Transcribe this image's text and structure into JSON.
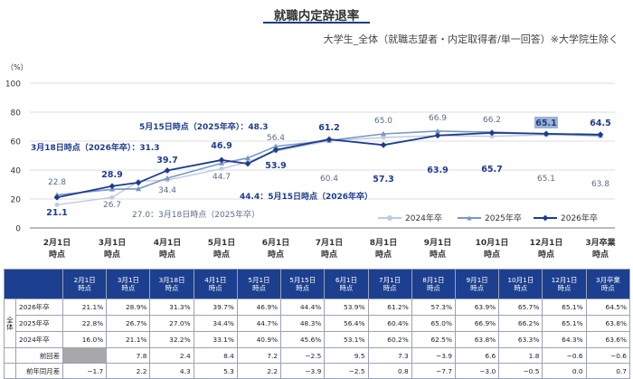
{
  "header": {
    "title": "就職内定辞退率",
    "subtitle": "大学生_全体（就職志望者・内定取得者/単一回答）※大学院生除く"
  },
  "chart_data": {
    "type": "line",
    "y_unit": "（%）",
    "ylim": [
      0,
      100
    ],
    "yticks": [
      "0",
      "20",
      "40",
      "60",
      "80",
      "100"
    ],
    "categories": [
      "2月1日時点",
      "3月1日時点",
      "3月18日時点",
      "4月1日時点",
      "5月1日時点",
      "5月15日時点",
      "6月1日時点",
      "7月1日時点",
      "8月1日時点",
      "9月1日時点",
      "10月1日時点",
      "12月1日時点",
      "3月卒業時点"
    ],
    "x_tick_labels": [
      [
        "2月1日",
        "時点"
      ],
      [
        "3月1日",
        "時点"
      ],
      [
        "4月1日",
        "時点"
      ],
      [
        "5月1日",
        "時点"
      ],
      [
        "6月1日",
        "時点"
      ],
      [
        "7月1日",
        "時点"
      ],
      [
        "8月1日",
        "時点"
      ],
      [
        "9月1日",
        "時点"
      ],
      [
        "10月1日",
        "時点"
      ],
      [
        "12月1日",
        "時点"
      ],
      [
        "3月卒業",
        "時点"
      ]
    ],
    "grid": true,
    "legend_position": "bottom-right",
    "series": [
      {
        "name": "2024年卒",
        "color": "#bccbe0",
        "values": [
          16.0,
          21.1,
          32.2,
          33.1,
          40.9,
          45.6,
          53.1,
          60.2,
          62.5,
          63.8,
          63.3,
          64.3,
          63.6
        ]
      },
      {
        "name": "2025年卒",
        "color": "#7b97c0",
        "values": [
          22.8,
          26.7,
          27.0,
          34.4,
          44.7,
          48.3,
          56.4,
          60.4,
          65.0,
          66.9,
          66.2,
          65.1,
          63.8
        ]
      },
      {
        "name": "2026年卒",
        "color": "#1d3c8f",
        "values": [
          21.1,
          28.9,
          31.3,
          39.7,
          46.9,
          44.4,
          53.9,
          61.2,
          57.3,
          63.9,
          65.7,
          65.1,
          64.5
        ]
      }
    ],
    "labels_2025": [
      "22.8",
      "26.7",
      "34.4",
      "44.7",
      "56.4",
      "60.4",
      "65.0",
      "66.9",
      "66.2",
      "65.1",
      "63.8"
    ],
    "labels_2026": [
      "21.1",
      "28.9",
      "39.7",
      "46.9",
      "53.9",
      "61.2",
      "57.3",
      "63.9",
      "65.7",
      "65.1",
      "64.5"
    ],
    "annotations": {
      "mar18_2026": "3月18日時点（2026年卒）：31.3",
      "may15_2025": "5月15日時点（2025年卒）：48.3",
      "may15_2026": "44.4：5月15日時点（2026年卒）",
      "mar18_2025": "27.0：3月18日時点（2025年卒）"
    }
  },
  "table": {
    "columns": [
      "2月1日\n時点",
      "3月1日\n時点",
      "3月18日\n時点",
      "4月1日\n時点",
      "5月1日\n時点",
      "5月15日\n時点",
      "6月1日\n時点",
      "7月1日\n時点",
      "8月1日\n時点",
      "9月1日\n時点",
      "10月1日\n時点",
      "12月1日\n時点",
      "3月卒業\n時点"
    ],
    "group_label": "全体",
    "rows": [
      {
        "label": "2026年卒",
        "values": [
          "21.1%",
          "28.9%",
          "31.3%",
          "39.7%",
          "46.9%",
          "44.4%",
          "53.9%",
          "61.2%",
          "57.3%",
          "63.9%",
          "65.7%",
          "65.1%",
          "64.5%"
        ]
      },
      {
        "label": "2025年卒",
        "values": [
          "22.8%",
          "26.7%",
          "27.0%",
          "34.4%",
          "44.7%",
          "48.3%",
          "56.4%",
          "60.4%",
          "65.0%",
          "66.9%",
          "66.2%",
          "65.1%",
          "63.8%"
        ]
      },
      {
        "label": "2024年卒",
        "values": [
          "16.0%",
          "21.1%",
          "32.2%",
          "33.1%",
          "40.9%",
          "45.6%",
          "53.1%",
          "60.2%",
          "62.5%",
          "63.8%",
          "63.3%",
          "64.3%",
          "63.6%"
        ]
      }
    ],
    "diff_rows": [
      {
        "label": "前回差",
        "values": [
          "",
          "7.8",
          "2.4",
          "8.4",
          "7.2",
          "−2.5",
          "9.5",
          "7.3",
          "−3.9",
          "6.6",
          "1.8",
          "−0.6",
          "−0.6"
        ]
      },
      {
        "label": "前年同月差",
        "values": [
          "−1.7",
          "2.2",
          "4.3",
          "5.3",
          "2.2",
          "−3.9",
          "−2.5",
          "0.8",
          "−7.7",
          "−3.0",
          "−0.5",
          "0.0",
          "0.7"
        ]
      }
    ]
  }
}
